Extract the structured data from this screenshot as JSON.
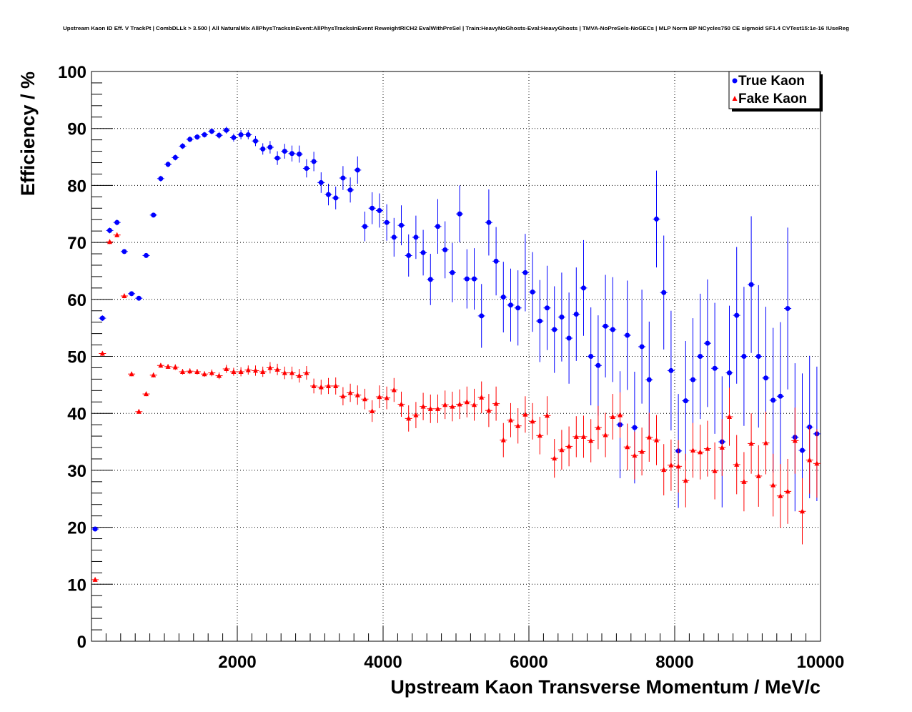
{
  "chart_data": {
    "type": "scatter",
    "title": "Upstream Kaon ID Eff. V TrackPt | CombDLLk > 3.500 | All NaturalMix AllPhysTracksInEvent:AllPhysTracksInEvent ReweightRICH2 EvalWithPreSel | Train:HeavyNoGhosts-Eval:HeavyGhosts | TMVA-NoPreSels-NoGECs | MLP Norm BP NCycles750 CE sigmoid SF1.4 CVTest15:1e-16 !UseReg",
    "xlabel": "Upstream Kaon Transverse Momentum / MeV/c",
    "ylabel": "Efficiency / %",
    "xlim": [
      0,
      10000
    ],
    "ylim": [
      0,
      100
    ],
    "x_ticks": [
      2000,
      4000,
      6000,
      8000,
      10000
    ],
    "y_ticks": [
      0,
      10,
      20,
      30,
      40,
      50,
      60,
      70,
      80,
      90,
      100
    ],
    "grid": true,
    "legend_position": "top-right",
    "series": [
      {
        "name": "True Kaon",
        "color": "#0000ff",
        "marker": "circle",
        "x": [
          50,
          150,
          250,
          350,
          450,
          550,
          650,
          750,
          850,
          950,
          1050,
          1150,
          1250,
          1350,
          1450,
          1550,
          1650,
          1750,
          1850,
          1950,
          2050,
          2150,
          2250,
          2350,
          2450,
          2550,
          2650,
          2750,
          2850,
          2950,
          3050,
          3150,
          3250,
          3350,
          3450,
          3550,
          3650,
          3750,
          3850,
          3950,
          4050,
          4150,
          4250,
          4350,
          4450,
          4550,
          4650,
          4750,
          4850,
          4950,
          5050,
          5150,
          5250,
          5350,
          5450,
          5550,
          5650,
          5750,
          5850,
          5950,
          6050,
          6150,
          6250,
          6350,
          6450,
          6550,
          6650,
          6750,
          6850,
          6950,
          7050,
          7150,
          7250,
          7350,
          7450,
          7550,
          7650,
          7750,
          7850,
          7950,
          8050,
          8150,
          8250,
          8350,
          8450,
          8550,
          8650,
          8750,
          8850,
          8950,
          9050,
          9150,
          9250,
          9350,
          9450,
          9550,
          9650,
          9750,
          9850,
          9950
        ],
        "y": [
          19.7,
          56.7,
          72.1,
          73.5,
          68.4,
          61.0,
          60.2,
          67.7,
          74.8,
          81.2,
          83.7,
          84.9,
          86.9,
          88.1,
          88.5,
          88.9,
          89.5,
          88.8,
          89.7,
          88.4,
          88.9,
          88.9,
          87.8,
          86.4,
          86.7,
          84.8,
          86.0,
          85.6,
          85.5,
          83.0,
          84.2,
          80.5,
          78.4,
          77.8,
          81.3,
          79.2,
          82.7,
          72.8,
          76.0,
          75.6,
          73.5,
          70.9,
          73.0,
          67.7,
          70.9,
          68.2,
          63.5,
          72.8,
          68.7,
          64.7,
          75.0,
          63.6,
          63.6,
          57.1,
          73.5,
          66.7,
          60.4,
          59.0,
          58.5,
          64.7,
          61.3,
          56.2,
          58.5,
          54.7,
          56.9,
          53.2,
          57.4,
          62.0,
          50.0,
          48.4,
          55.3,
          54.7,
          38.0,
          53.7,
          37.5,
          51.7,
          45.9,
          74.1,
          61.2,
          47.5,
          33.4,
          42.2,
          45.9,
          50.0,
          52.3,
          47.9,
          35.0,
          47.1,
          57.2,
          50.0,
          62.6,
          50.0,
          46.2,
          42.3,
          43.0,
          58.4,
          35.8,
          33.5,
          37.6,
          36.4
        ],
        "err": [
          0.4,
          0.5,
          0.5,
          0.5,
          0.4,
          0.4,
          0.4,
          0.4,
          0.4,
          0.5,
          0.5,
          0.5,
          0.5,
          0.5,
          0.5,
          0.5,
          0.5,
          0.6,
          0.6,
          0.7,
          0.8,
          0.8,
          0.9,
          1.0,
          1.1,
          1.2,
          1.3,
          1.4,
          1.5,
          1.6,
          1.7,
          1.8,
          1.9,
          2.0,
          2.1,
          2.2,
          2.4,
          2.6,
          2.8,
          3.0,
          3.2,
          3.4,
          3.5,
          3.7,
          3.8,
          4.0,
          4.5,
          4.8,
          5.0,
          5.2,
          5.0,
          5.2,
          5.4,
          5.6,
          5.8,
          6.0,
          6.2,
          6.4,
          6.6,
          6.8,
          7.0,
          7.2,
          7.4,
          7.6,
          7.8,
          8.0,
          8.2,
          8.4,
          8.6,
          8.8,
          9.0,
          9.2,
          9.4,
          9.6,
          9.8,
          10.0,
          10.2,
          8.5,
          10.0,
          10.5,
          10.0,
          10.5,
          10.8,
          11.0,
          11.2,
          11.5,
          11.5,
          11.8,
          12.0,
          12.2,
          12.0,
          12.5,
          12.5,
          12.7,
          13.0,
          14.2,
          13.0,
          13.5,
          12.5,
          11.8
        ]
      },
      {
        "name": "Fake Kaon",
        "color": "#ff0000",
        "marker": "triangle",
        "x": [
          50,
          150,
          250,
          350,
          450,
          550,
          650,
          750,
          850,
          950,
          1050,
          1150,
          1250,
          1350,
          1450,
          1550,
          1650,
          1750,
          1850,
          1950,
          2050,
          2150,
          2250,
          2350,
          2450,
          2550,
          2650,
          2750,
          2850,
          2950,
          3050,
          3150,
          3250,
          3350,
          3450,
          3550,
          3650,
          3750,
          3850,
          3950,
          4050,
          4150,
          4250,
          4350,
          4450,
          4550,
          4650,
          4750,
          4850,
          4950,
          5050,
          5150,
          5250,
          5350,
          5450,
          5550,
          5650,
          5750,
          5850,
          5950,
          6050,
          6150,
          6250,
          6350,
          6450,
          6550,
          6650,
          6750,
          6850,
          6950,
          7050,
          7150,
          7250,
          7350,
          7450,
          7550,
          7650,
          7750,
          7850,
          7950,
          8050,
          8150,
          8250,
          8350,
          8450,
          8550,
          8650,
          8750,
          8850,
          8950,
          9050,
          9150,
          9250,
          9350,
          9450,
          9550,
          9650,
          9750,
          9850,
          9950
        ],
        "y": [
          10.8,
          50.5,
          70.1,
          71.3,
          60.6,
          46.9,
          40.3,
          43.4,
          46.7,
          48.4,
          48.2,
          48.1,
          47.3,
          47.4,
          47.3,
          46.9,
          47.1,
          46.6,
          47.8,
          47.3,
          47.3,
          47.6,
          47.5,
          47.3,
          48.0,
          47.7,
          47.1,
          47.1,
          46.6,
          47.1,
          44.8,
          44.6,
          44.8,
          44.8,
          43.0,
          43.6,
          43.2,
          42.5,
          40.4,
          42.9,
          42.7,
          44.1,
          41.6,
          39.1,
          39.7,
          41.2,
          40.8,
          40.8,
          41.5,
          41.2,
          41.6,
          42.0,
          41.5,
          42.8,
          40.5,
          41.7,
          35.3,
          38.8,
          37.8,
          39.8,
          38.6,
          36.1,
          39.6,
          32.1,
          33.6,
          34.2,
          35.9,
          35.9,
          35.2,
          37.5,
          36.2,
          39.4,
          39.7,
          34.1,
          32.6,
          33.3,
          35.8,
          35.3,
          30.1,
          30.9,
          30.7,
          28.2,
          33.5,
          33.2,
          33.8,
          29.9,
          34.0,
          39.4,
          31.0,
          28.0,
          34.7,
          29.0,
          34.8,
          27.4,
          25.5,
          26.3,
          35.2,
          22.8,
          31.8,
          31.2
        ],
        "err": [
          0.3,
          0.4,
          0.4,
          0.4,
          0.4,
          0.4,
          0.4,
          0.4,
          0.4,
          0.4,
          0.4,
          0.5,
          0.5,
          0.5,
          0.5,
          0.5,
          0.6,
          0.6,
          0.7,
          0.7,
          0.8,
          0.8,
          0.9,
          0.9,
          1.0,
          1.0,
          1.1,
          1.1,
          1.2,
          1.2,
          1.3,
          1.3,
          1.4,
          1.5,
          1.6,
          1.6,
          1.7,
          1.8,
          1.9,
          2.0,
          2.0,
          2.1,
          2.2,
          2.3,
          2.3,
          2.4,
          2.5,
          2.5,
          2.5,
          2.6,
          2.6,
          2.7,
          2.8,
          2.8,
          2.9,
          3.0,
          3.0,
          3.0,
          3.1,
          3.2,
          3.2,
          3.3,
          3.4,
          3.4,
          3.5,
          3.5,
          3.6,
          3.7,
          3.8,
          3.8,
          3.9,
          4.0,
          4.0,
          4.1,
          4.2,
          4.2,
          4.3,
          4.4,
          4.5,
          4.5,
          4.6,
          4.7,
          4.8,
          4.8,
          4.9,
          5.0,
          5.0,
          5.1,
          5.2,
          5.2,
          5.3,
          5.4,
          5.5,
          5.5,
          5.6,
          5.7,
          5.8,
          5.8,
          5.9,
          6.0
        ]
      }
    ]
  }
}
